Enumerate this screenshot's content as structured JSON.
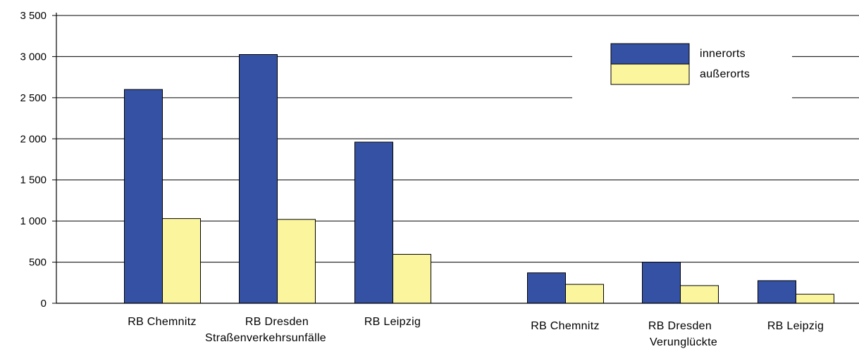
{
  "chart_data": {
    "type": "bar",
    "title": "",
    "xlabel": "",
    "ylabel": "",
    "ylim": [
      0,
      3500
    ],
    "yticks": [
      0,
      500,
      1000,
      1500,
      2000,
      2500,
      3000,
      3500
    ],
    "ytick_labels": [
      "0",
      "500",
      "1 000",
      "1 500",
      "2 000",
      "2 500",
      "3 000",
      "3 500"
    ],
    "grid": true,
    "legend_position": "top-right",
    "groups": [
      "Straßenverkehrsunfälle",
      "Verunglückte"
    ],
    "categories": [
      "RB Chemnitz",
      "RB Dresden",
      "RB Leipzig",
      "RB Chemnitz",
      "RB Dresden",
      "RB Leipzig"
    ],
    "category_group": [
      0,
      0,
      0,
      1,
      1,
      1
    ],
    "series": [
      {
        "name": "innerorts",
        "color": "#3551a4",
        "values": [
          2600,
          3025,
          1960,
          370,
          500,
          275
        ]
      },
      {
        "name": "außerorts",
        "color": "#fbf59e",
        "values": [
          1030,
          1020,
          595,
          230,
          215,
          110
        ]
      }
    ]
  }
}
